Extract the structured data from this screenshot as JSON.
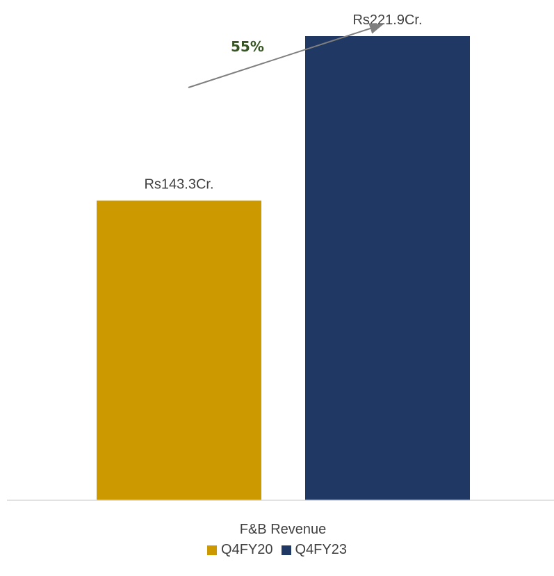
{
  "chart_data": {
    "type": "bar",
    "categories": [
      "F&B Revenue"
    ],
    "series": [
      {
        "name": "Q4FY20",
        "values": [
          143.3
        ],
        "color": "#CC9A00",
        "label": "Rs143.3Cr."
      },
      {
        "name": "Q4FY23",
        "values": [
          221.9
        ],
        "color": "#203864",
        "label": "Rs221.9Cr."
      }
    ],
    "annotation": {
      "text": "55%",
      "color": "#375623"
    },
    "ylim": [
      0,
      230
    ],
    "grid": false,
    "legend_position": "bottom",
    "title": "",
    "xlabel": "",
    "ylabel": ""
  }
}
